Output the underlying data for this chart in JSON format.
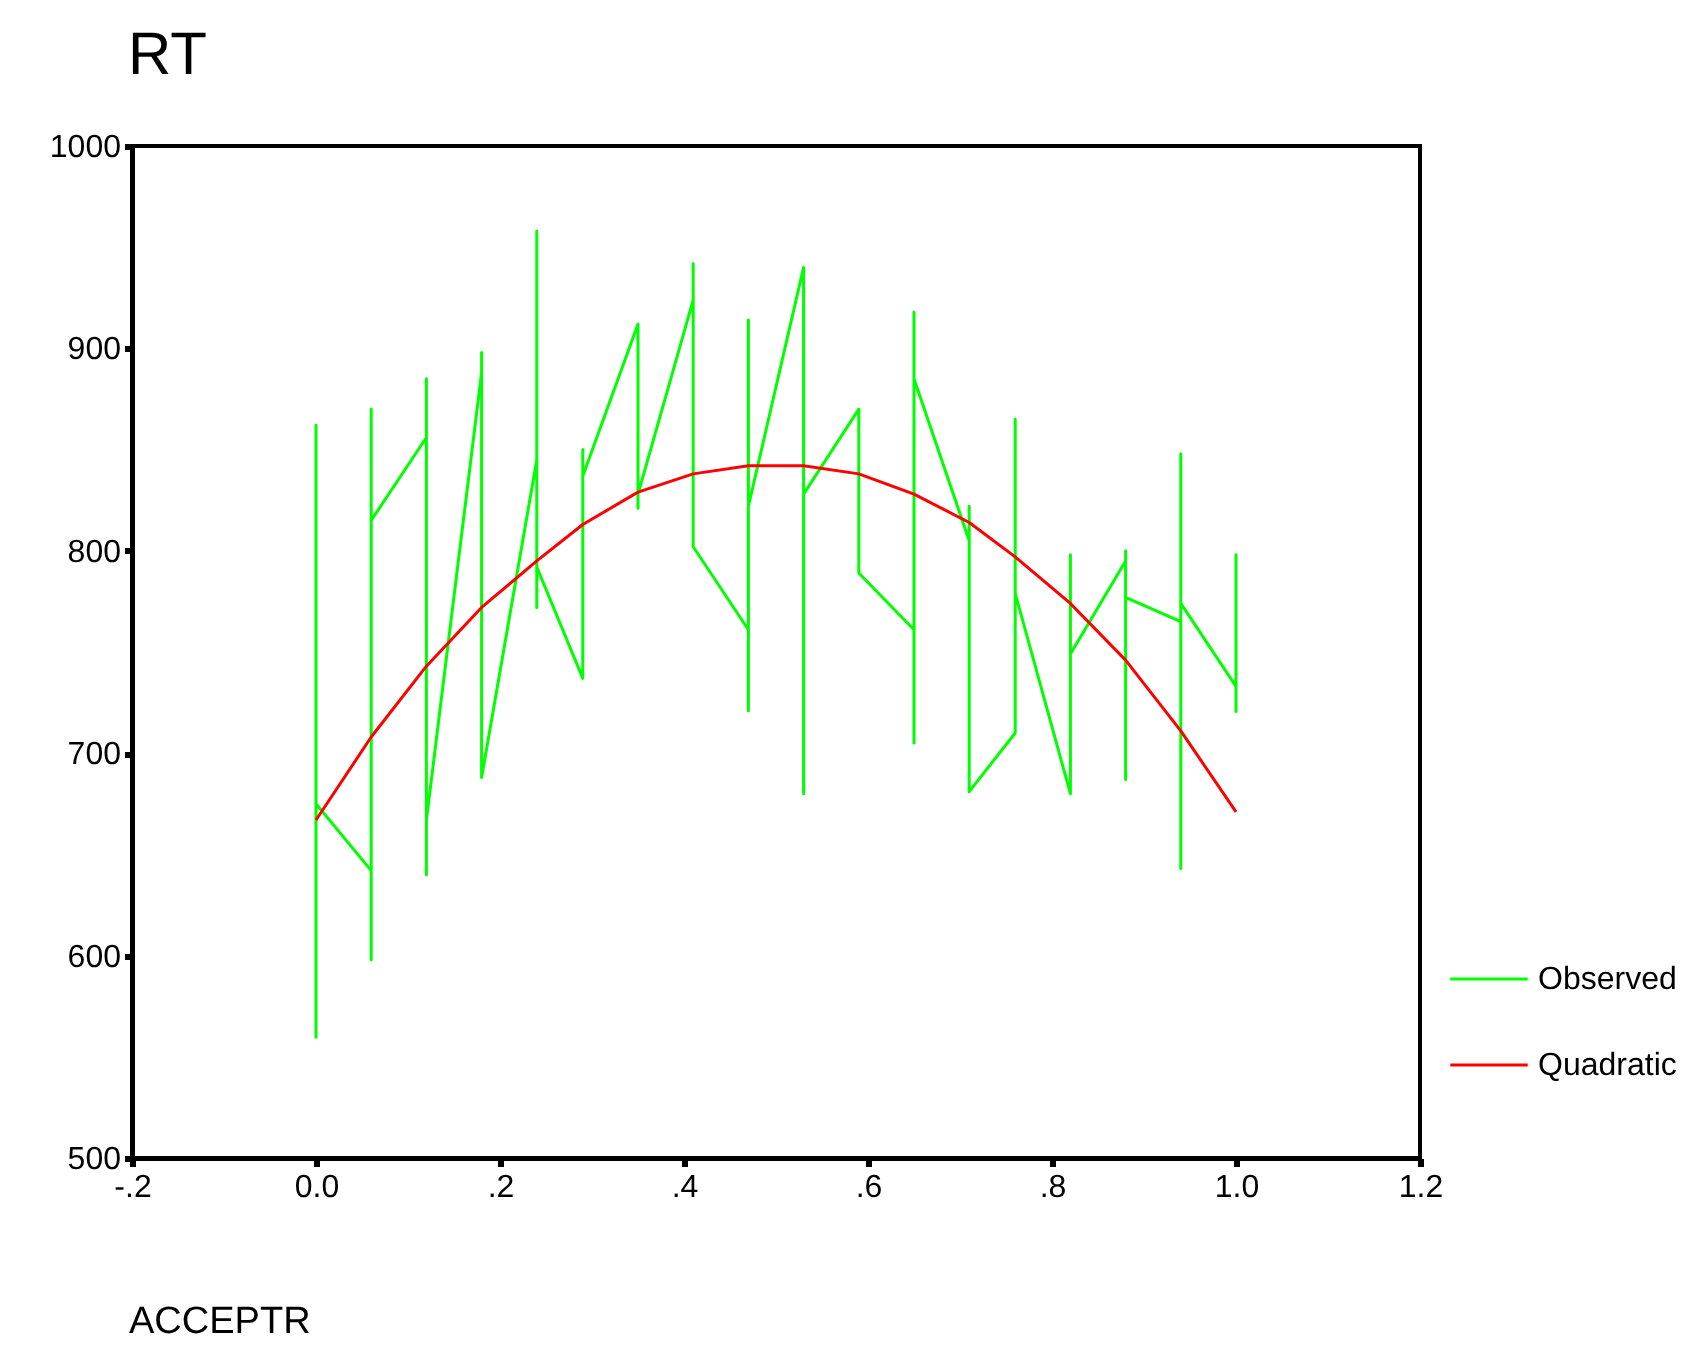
{
  "chart_data": {
    "type": "line",
    "title": "RT",
    "xlabel": "ACCEPTR",
    "xlim": [
      -0.2,
      1.2
    ],
    "xticks": [
      {
        "value": -0.2,
        "label": "-.2"
      },
      {
        "value": 0,
        "label": "0.0"
      },
      {
        "value": 0.2,
        "label": ".2"
      },
      {
        "value": 0.4,
        "label": ".4"
      },
      {
        "value": 0.6,
        "label": ".6"
      },
      {
        "value": 0.8,
        "label": ".8"
      },
      {
        "value": 1.0,
        "label": "1.0"
      },
      {
        "value": 1.2,
        "label": "1.2"
      }
    ],
    "ylim": [
      500,
      1000
    ],
    "yticks": [
      500,
      600,
      700,
      800,
      900,
      1000
    ],
    "grid": false,
    "legend": "bottom right",
    "marker": "none",
    "line_style": "solid",
    "series": [
      {
        "name": "Observed",
        "color": "#00ff00",
        "x": [
          0,
          0,
          0,
          0.06,
          0.06,
          0.06,
          0.06,
          0.12,
          0.12,
          0.12,
          0.12,
          0.18,
          0.18,
          0.18,
          0.24,
          0.24,
          0.24,
          0.24,
          0.29,
          0.29,
          0.29,
          0.35,
          0.35,
          0.35,
          0.41,
          0.41,
          0.41,
          0.47,
          0.47,
          0.47,
          0.47,
          0.53,
          0.53,
          0.53,
          0.59,
          0.59,
          0.65,
          0.65,
          0.65,
          0.65,
          0.71,
          0.71,
          0.71,
          0.76,
          0.76,
          0.76,
          0.82,
          0.82,
          0.82,
          0.88,
          0.88,
          0.88,
          0.88,
          0.94,
          0.94,
          0.94,
          0.94,
          1.0,
          1.0,
          1.0
        ],
        "values": [
          559,
          862,
          675,
          642,
          598,
          870,
          815,
          856,
          885,
          640,
          667,
          888,
          898,
          688,
          845,
          958,
          772,
          792,
          737,
          850,
          837,
          912,
          821,
          828,
          924,
          942,
          802,
          761,
          721,
          914,
          822,
          940,
          680,
          828,
          870,
          789,
          761,
          705,
          918,
          885,
          805,
          822,
          681,
          710,
          865,
          779,
          680,
          798,
          749,
          795,
          800,
          687,
          777,
          765,
          848,
          643,
          774,
          733,
          798,
          720
        ]
      },
      {
        "name": "Quadratic",
        "color": "#ff0000",
        "x": [
          0,
          0.06,
          0.12,
          0.18,
          0.24,
          0.29,
          0.35,
          0.41,
          0.47,
          0.53,
          0.59,
          0.65,
          0.71,
          0.76,
          0.82,
          0.88,
          0.94,
          1.0
        ],
        "values": [
          667,
          708,
          743,
          772,
          795,
          813,
          829,
          838,
          842,
          842,
          838,
          828,
          814,
          797,
          774,
          746,
          711,
          671
        ]
      }
    ]
  }
}
